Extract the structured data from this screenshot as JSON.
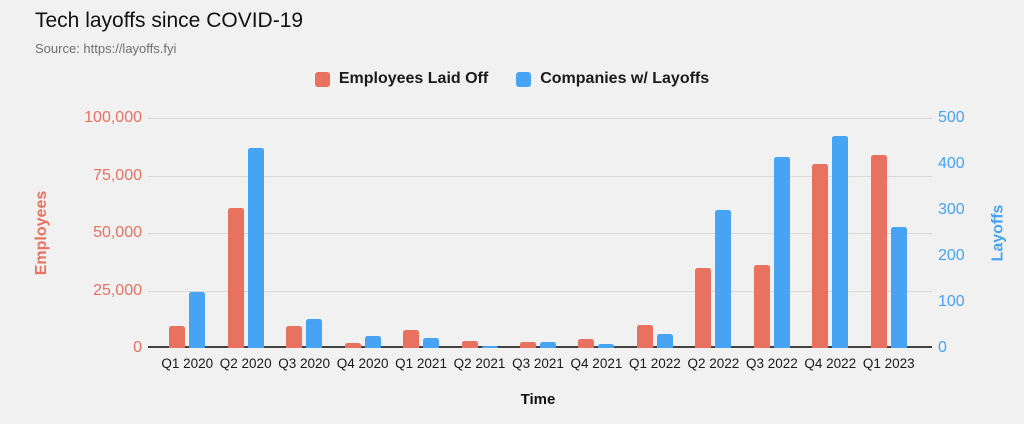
{
  "header": {
    "title": "Tech layoffs since COVID-19",
    "source": "Source: https://layoffs.fyi"
  },
  "colors": {
    "employees": "#e8715f",
    "companies": "#47a3f3",
    "background": "#f1f1f2",
    "gridline": "#d8d8d8",
    "baseline": "#424242"
  },
  "chart_data": {
    "type": "bar",
    "title": "Tech layoffs since COVID-19",
    "source": "Source: https://layoffs.fyi",
    "xlabel": "Time",
    "legend_position": "top-center",
    "grid": "horizontal",
    "categories": [
      "Q1 2020",
      "Q2 2020",
      "Q3 2020",
      "Q4 2020",
      "Q1 2021",
      "Q2 2021",
      "Q3 2021",
      "Q4 2021",
      "Q1 2022",
      "Q2 2022",
      "Q3 2022",
      "Q4 2022",
      "Q1 2023"
    ],
    "series": [
      {
        "name": "Employees Laid Off",
        "axis": "left",
        "color": "#e8715f",
        "values": [
          9600,
          61000,
          9500,
          2000,
          8000,
          3000,
          2500,
          4000,
          10000,
          35000,
          36000,
          80000,
          84000
        ]
      },
      {
        "name": "Companies w/ Layoffs",
        "axis": "right",
        "color": "#47a3f3",
        "values": [
          122,
          435,
          62,
          26,
          22,
          5,
          13,
          9,
          31,
          300,
          415,
          460,
          262
        ]
      }
    ],
    "left_axis": {
      "label": "Employees",
      "ticks": [
        "0",
        "25,000",
        "50,000",
        "75,000",
        "100,000"
      ],
      "min": 0,
      "max": 100000
    },
    "right_axis": {
      "label": "Layoffs",
      "ticks": [
        "0",
        "100",
        "200",
        "300",
        "400",
        "500"
      ],
      "min": 0,
      "max": 500
    }
  }
}
